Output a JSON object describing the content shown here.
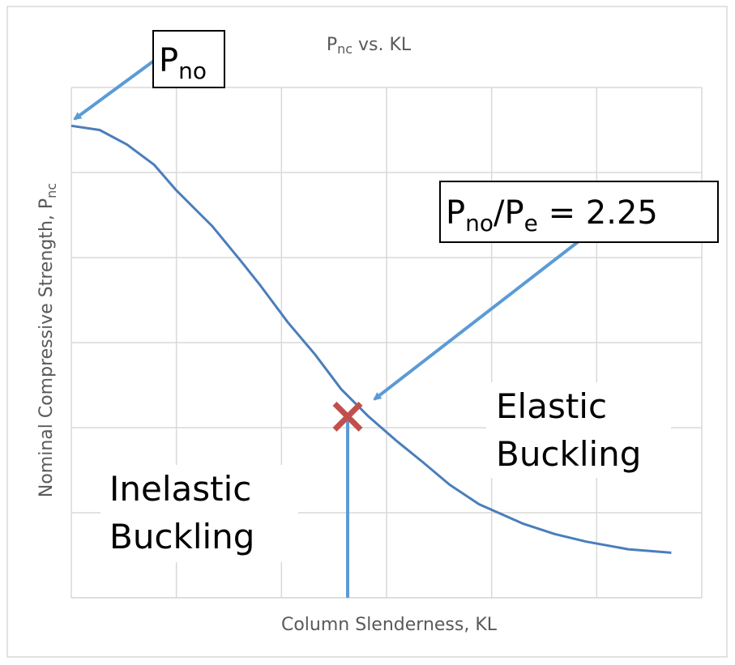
{
  "chart_data": {
    "type": "line",
    "title": {
      "main": "P",
      "sub": "nc",
      "rest": " vs. KL"
    },
    "xlabel": "Column Slenderness, KL",
    "ylabel": {
      "main": "Nominal Compressive Strength, P",
      "sub": "nc"
    },
    "grid": true,
    "legend": "none",
    "xlim": [
      0,
      6
    ],
    "ylim": [
      0,
      6
    ],
    "series": [
      {
        "x": [
          0.0,
          0.27,
          0.53,
          0.79,
          1.0,
          1.34,
          1.6,
          1.8,
          2.06,
          2.32,
          2.57,
          2.83,
          3.09,
          3.34,
          3.6,
          3.88,
          4.3,
          4.6,
          4.9,
          5.3,
          5.71
        ],
        "y": [
          5.55,
          5.5,
          5.33,
          5.09,
          4.79,
          4.37,
          3.98,
          3.67,
          3.24,
          2.86,
          2.45,
          2.13,
          1.85,
          1.6,
          1.33,
          1.1,
          0.87,
          0.75,
          0.66,
          0.57,
          0.53
        ]
      }
    ],
    "transition_x": 2.63,
    "transition_y": 2.13,
    "colors": {
      "curve": "#4a7ebb",
      "arrow": "#5b9bd5",
      "marker": "#c0504d",
      "grid": "#d9d9d9"
    },
    "annotations": {
      "pno": {
        "main": "P",
        "sub": "no"
      },
      "ratio": {
        "main1": "P",
        "sub1": "no",
        "mid": "/P",
        "sub2": "e",
        "rest": " = 2.25"
      },
      "elastic": [
        "Elastic",
        "Buckling"
      ],
      "inelastic": [
        "Inelastic",
        "Buckling"
      ]
    }
  }
}
